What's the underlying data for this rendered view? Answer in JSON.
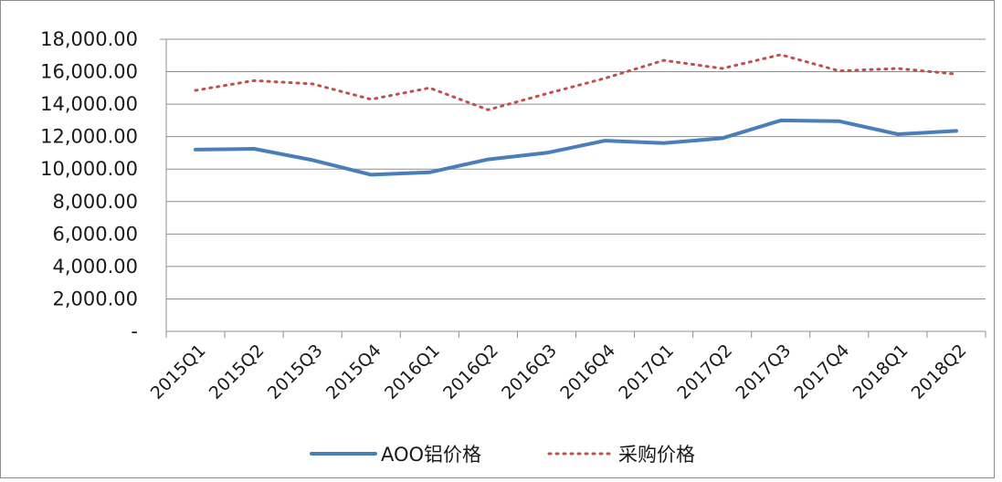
{
  "chart_data": {
    "type": "line",
    "title": "",
    "xlabel": "",
    "ylabel": "",
    "categories": [
      "2015Q1",
      "2015Q2",
      "2015Q3",
      "2015Q4",
      "2016Q1",
      "2016Q2",
      "2016Q3",
      "2016Q4",
      "2017Q1",
      "2017Q2",
      "2017Q3",
      "2017Q4",
      "2018Q1",
      "2018Q2"
    ],
    "ylim": [
      0,
      18000
    ],
    "ytick_values": [
      0,
      2000,
      4000,
      6000,
      8000,
      10000,
      12000,
      14000,
      16000,
      18000
    ],
    "ytick_labels": [
      "-",
      "2,000.00",
      "4,000.00",
      "6,000.00",
      "8,000.00",
      "10,000.00",
      "12,000.00",
      "14,000.00",
      "16,000.00",
      "18,000.00"
    ],
    "grid": true,
    "legend_position": "bottom",
    "series": [
      {
        "name": "AOO铝价格",
        "style": "solid",
        "color": "#4a7ebb",
        "values": [
          11200,
          11250,
          10550,
          9650,
          9800,
          10600,
          11000,
          11750,
          11600,
          11900,
          13000,
          12950,
          12150,
          12350
        ]
      },
      {
        "name": "采购价格",
        "style": "dotted",
        "color": "#c0504d",
        "values": [
          14850,
          15450,
          15250,
          14300,
          15000,
          13650,
          14650,
          15600,
          16700,
          16200,
          17050,
          16050,
          16200,
          15850
        ]
      }
    ]
  }
}
